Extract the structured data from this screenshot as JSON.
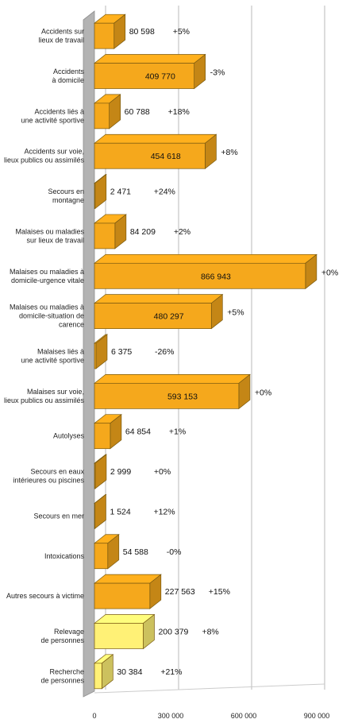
{
  "chart_data": {
    "type": "bar",
    "orientation": "horizontal",
    "grid": true,
    "xlim": [
      0,
      900000
    ],
    "x_ticks": [
      0,
      300000,
      600000,
      900000
    ],
    "x_tick_labels": [
      "0",
      "300 000",
      "600 000",
      "900 000"
    ],
    "categories": [
      [
        "Accidents sur",
        "lieux de travail"
      ],
      [
        "Accidents",
        "à domicile"
      ],
      [
        "Accidents liés à",
        "une activité sportive"
      ],
      [
        "Accidents sur voie,",
        "lieux publics ou assimilés"
      ],
      [
        "Secours en",
        "montagne"
      ],
      [
        "Malaises ou maladies",
        "sur lieux de travail"
      ],
      [
        "Malaises ou maladies à",
        "domicile-urgence vitale"
      ],
      [
        "Malaises ou maladies à",
        "domicile-situation de",
        "carence"
      ],
      [
        "Malaises liés à",
        "une activité sportive"
      ],
      [
        "Malaises sur voie,",
        "lieux publics ou assimilés"
      ],
      [
        "Autolyses"
      ],
      [
        "Secours en eaux",
        "intérieures ou piscines"
      ],
      [
        "Secours en mer"
      ],
      [
        "Intoxications"
      ],
      [
        "Autres secours à victime"
      ],
      [
        "Relevage",
        "de personnes"
      ],
      [
        "Recherche",
        "de personnes"
      ]
    ],
    "values": [
      80598,
      409770,
      60788,
      454618,
      2471,
      84209,
      866943,
      480297,
      6375,
      593153,
      64854,
      2999,
      1524,
      54588,
      227563,
      200379,
      30384
    ],
    "value_labels": [
      "80 598",
      "409 770",
      "60 788",
      "454 618",
      "2 471",
      "84 209",
      "866 943",
      "480 297",
      "6 375",
      "593 153",
      "64 854",
      "2 999",
      "1 524",
      "54 588",
      "227 563",
      "200 379",
      "30 384"
    ],
    "changes": [
      "+5%",
      "-3%",
      "+18%",
      "+8%",
      "+24%",
      "+2%",
      "+0%",
      "+5%",
      "-26%",
      "+0%",
      "+1%",
      "+0%",
      "+12%",
      "-0%",
      "+15%",
      "+8%",
      "+21%"
    ],
    "bar_colors": [
      "#f5a81c",
      "#f5a81c",
      "#f5a81c",
      "#f5a81c",
      "#f5a81c",
      "#f5a81c",
      "#f5a81c",
      "#f5a81c",
      "#f5a81c",
      "#f5a81c",
      "#f5a81c",
      "#f5a81c",
      "#f5a81c",
      "#f5a81c",
      "#f5a81c",
      "#fff176",
      "#fff176"
    ]
  }
}
